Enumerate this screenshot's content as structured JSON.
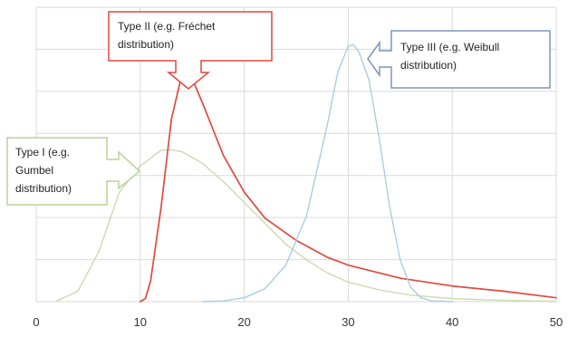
{
  "chart_data": {
    "type": "line",
    "title": "",
    "xlabel": "",
    "ylabel": "",
    "xlim": [
      0,
      50
    ],
    "ylim": [
      0,
      1
    ],
    "x_ticks": [
      0,
      10,
      20,
      30,
      40,
      50
    ],
    "grid": true,
    "series": [
      {
        "callout": "Type I (e.g. Gumbel distribution)",
        "color": "#c9dbb0",
        "x": [
          2,
          4,
          6,
          8,
          10,
          12,
          13,
          14,
          16,
          18,
          20,
          22,
          24,
          26,
          28,
          30,
          33,
          36,
          40,
          44,
          48,
          50
        ],
        "y": [
          0.003,
          0.04,
          0.19,
          0.42,
          0.52,
          0.58,
          0.582,
          0.575,
          0.53,
          0.46,
          0.38,
          0.3,
          0.22,
          0.16,
          0.11,
          0.075,
          0.045,
          0.025,
          0.012,
          0.006,
          0.003,
          0.002
        ]
      },
      {
        "callout": "Type II (e.g. Fréchet distribution)",
        "color": "#e04a3f",
        "x": [
          10,
          10.5,
          11,
          12,
          13,
          14,
          14.5,
          15,
          16,
          18,
          20,
          22,
          25,
          28,
          30,
          35,
          40,
          45,
          50
        ],
        "y": [
          0,
          0.012,
          0.08,
          0.36,
          0.7,
          0.87,
          0.875,
          0.855,
          0.76,
          0.56,
          0.42,
          0.32,
          0.235,
          0.17,
          0.14,
          0.09,
          0.06,
          0.04,
          0.015
        ]
      },
      {
        "callout": "Type III (e.g. Weibull distribution)",
        "color": "#aacde2",
        "x": [
          16,
          18,
          20,
          22,
          24,
          26,
          28,
          29,
          30,
          30.5,
          31,
          32,
          33,
          34,
          35,
          36,
          37,
          38,
          40
        ],
        "y": [
          0,
          0.003,
          0.015,
          0.05,
          0.14,
          0.33,
          0.68,
          0.88,
          0.98,
          0.985,
          0.96,
          0.85,
          0.62,
          0.36,
          0.16,
          0.055,
          0.015,
          0.003,
          0
        ]
      }
    ]
  },
  "callouts": {
    "type_ii": {
      "line1": "Type II (e.g. Fréchet",
      "line2": "distribution)"
    },
    "type_iii": {
      "line1": "Type III (e.g. Weibull",
      "line2": "distribution)"
    },
    "type_i": {
      "line1": "Type I (e.g.",
      "line2": "Gumbel",
      "line3": "distribution)"
    }
  },
  "colors": {
    "grid": "#d9d9d9",
    "type_i_border": "#b8d39a",
    "type_ii_border": "#e1483c",
    "type_iii_border": "#7e95b8"
  }
}
